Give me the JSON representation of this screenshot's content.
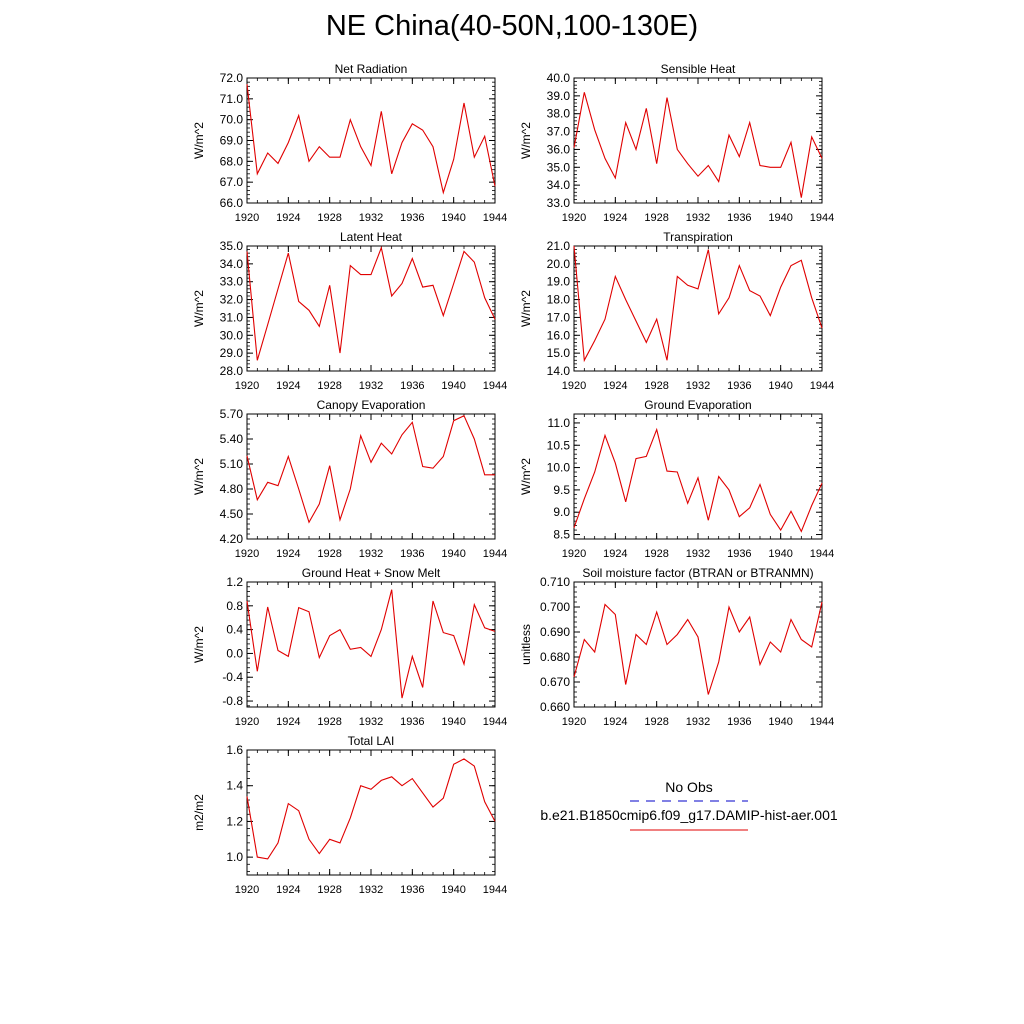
{
  "title": "NE China(40-50N,100-130E)",
  "colors": {
    "model": "#e00000",
    "obs": "#0000c8",
    "axis": "#000000"
  },
  "legend": {
    "obs_label": "No Obs",
    "model_label": "b.e21.B1850cmip6.f09_g17.DAMIP-hist-aer.001"
  },
  "chart_data": [
    {
      "type": "line",
      "title": "Net Radiation",
      "ylabel": "W/m^2",
      "xlim": [
        1920,
        1944
      ],
      "ylim": [
        66.0,
        72.0
      ],
      "xticks": [
        1920,
        1924,
        1928,
        1932,
        1936,
        1940,
        1944
      ],
      "xtick_labels": [
        "1920",
        "1924",
        "1928",
        "1932",
        "1936",
        "1940",
        "1944"
      ],
      "yticks": [
        66.0,
        67.0,
        68.0,
        69.0,
        70.0,
        71.0,
        72.0
      ],
      "ytick_labels": [
        "66.0",
        "67.0",
        "68.0",
        "69.0",
        "70.0",
        "71.0",
        "72.0"
      ],
      "series": [
        {
          "x": [
            1920,
            1921,
            1922,
            1923,
            1924,
            1925,
            1926,
            1927,
            1928,
            1929,
            1930,
            1931,
            1932,
            1933,
            1934,
            1935,
            1936,
            1937,
            1938,
            1939,
            1940,
            1941,
            1942,
            1943,
            1944
          ],
          "values": [
            71.7,
            67.4,
            68.4,
            67.9,
            68.9,
            70.2,
            68.0,
            68.7,
            68.2,
            68.2,
            70.0,
            68.7,
            67.8,
            70.4,
            67.4,
            68.9,
            69.8,
            69.5,
            68.7,
            66.5,
            68.1,
            70.8,
            68.2,
            69.2,
            66.8
          ]
        }
      ]
    },
    {
      "type": "line",
      "title": "Sensible Heat",
      "ylabel": "W/m^2",
      "xlim": [
        1920,
        1944
      ],
      "ylim": [
        33.0,
        40.0
      ],
      "xticks": [
        1920,
        1924,
        1928,
        1932,
        1936,
        1940,
        1944
      ],
      "xtick_labels": [
        "1920",
        "1924",
        "1928",
        "1932",
        "1936",
        "1940",
        "1944"
      ],
      "yticks": [
        33.0,
        34.0,
        35.0,
        36.0,
        37.0,
        38.0,
        39.0,
        40.0
      ],
      "ytick_labels": [
        "33.0",
        "34.0",
        "35.0",
        "36.0",
        "37.0",
        "38.0",
        "39.0",
        "40.0"
      ],
      "series": [
        {
          "x": [
            1920,
            1921,
            1922,
            1923,
            1924,
            1925,
            1926,
            1927,
            1928,
            1929,
            1930,
            1931,
            1932,
            1933,
            1934,
            1935,
            1936,
            1937,
            1938,
            1939,
            1940,
            1941,
            1942,
            1943,
            1944
          ],
          "values": [
            36.1,
            39.2,
            37.1,
            35.5,
            34.4,
            37.5,
            36.0,
            38.3,
            35.2,
            38.9,
            36.0,
            35.2,
            34.5,
            35.1,
            34.2,
            36.8,
            35.6,
            37.5,
            35.1,
            35.0,
            35.0,
            36.4,
            33.3,
            36.7,
            35.5
          ]
        }
      ]
    },
    {
      "type": "line",
      "title": "Latent Heat",
      "ylabel": "W/m^2",
      "xlim": [
        1920,
        1944
      ],
      "ylim": [
        28.0,
        35.0
      ],
      "xticks": [
        1920,
        1924,
        1928,
        1932,
        1936,
        1940,
        1944
      ],
      "xtick_labels": [
        "1920",
        "1924",
        "1928",
        "1932",
        "1936",
        "1940",
        "1944"
      ],
      "yticks": [
        28.0,
        29.0,
        30.0,
        31.0,
        32.0,
        33.0,
        34.0,
        35.0
      ],
      "ytick_labels": [
        "28.0",
        "29.0",
        "30.0",
        "31.0",
        "32.0",
        "33.0",
        "34.0",
        "35.0"
      ],
      "series": [
        {
          "x": [
            1920,
            1921,
            1922,
            1923,
            1924,
            1925,
            1926,
            1927,
            1928,
            1929,
            1930,
            1931,
            1932,
            1933,
            1934,
            1935,
            1936,
            1937,
            1938,
            1939,
            1940,
            1941,
            1942,
            1943,
            1944
          ],
          "values": [
            34.7,
            28.6,
            30.6,
            32.6,
            34.6,
            31.9,
            31.4,
            30.5,
            32.8,
            29.0,
            33.9,
            33.4,
            33.4,
            34.9,
            32.2,
            32.9,
            34.3,
            32.7,
            32.8,
            31.1,
            32.9,
            34.7,
            34.1,
            32.1,
            30.9
          ]
        }
      ]
    },
    {
      "type": "line",
      "title": "Transpiration",
      "ylabel": "W/m^2",
      "xlim": [
        1920,
        1944
      ],
      "ylim": [
        14.0,
        21.0
      ],
      "xticks": [
        1920,
        1924,
        1928,
        1932,
        1936,
        1940,
        1944
      ],
      "xtick_labels": [
        "1920",
        "1924",
        "1928",
        "1932",
        "1936",
        "1940",
        "1944"
      ],
      "yticks": [
        14.0,
        15.0,
        16.0,
        17.0,
        18.0,
        19.0,
        20.0,
        21.0
      ],
      "ytick_labels": [
        "14.0",
        "15.0",
        "16.0",
        "17.0",
        "18.0",
        "19.0",
        "20.0",
        "21.0"
      ],
      "series": [
        {
          "x": [
            1920,
            1921,
            1922,
            1923,
            1924,
            1925,
            1926,
            1927,
            1928,
            1929,
            1930,
            1931,
            1932,
            1933,
            1934,
            1935,
            1936,
            1937,
            1938,
            1939,
            1940,
            1941,
            1942,
            1943,
            1944
          ],
          "values": [
            21.0,
            14.6,
            15.7,
            16.9,
            19.3,
            18.0,
            16.8,
            15.6,
            16.9,
            14.6,
            19.3,
            18.8,
            18.6,
            20.8,
            17.2,
            18.1,
            19.9,
            18.5,
            18.2,
            17.1,
            18.7,
            19.9,
            20.2,
            18.1,
            16.4
          ]
        }
      ]
    },
    {
      "type": "line",
      "title": "Canopy Evaporation",
      "ylabel": "W/m^2",
      "xlim": [
        1920,
        1944
      ],
      "ylim": [
        4.2,
        5.7
      ],
      "xticks": [
        1920,
        1924,
        1928,
        1932,
        1936,
        1940,
        1944
      ],
      "xtick_labels": [
        "1920",
        "1924",
        "1928",
        "1932",
        "1936",
        "1940",
        "1944"
      ],
      "yticks": [
        4.2,
        4.5,
        4.8,
        5.1,
        5.4,
        5.7
      ],
      "ytick_labels": [
        "4.20",
        "4.50",
        "4.80",
        "5.10",
        "5.40",
        "5.70"
      ],
      "series": [
        {
          "x": [
            1920,
            1921,
            1922,
            1923,
            1924,
            1925,
            1926,
            1927,
            1928,
            1929,
            1930,
            1931,
            1932,
            1933,
            1934,
            1935,
            1936,
            1937,
            1938,
            1939,
            1940,
            1941,
            1942,
            1943,
            1944
          ],
          "values": [
            5.2,
            4.67,
            4.88,
            4.84,
            5.19,
            4.8,
            4.4,
            4.62,
            5.08,
            4.43,
            4.8,
            5.44,
            5.12,
            5.35,
            5.22,
            5.45,
            5.6,
            5.07,
            5.05,
            5.19,
            5.62,
            5.68,
            5.4,
            4.97,
            4.97
          ]
        }
      ]
    },
    {
      "type": "line",
      "title": "Ground Evaporation",
      "ylabel": "W/m^2",
      "xlim": [
        1920,
        1944
      ],
      "ylim": [
        8.4,
        11.2
      ],
      "xticks": [
        1920,
        1924,
        1928,
        1932,
        1936,
        1940,
        1944
      ],
      "xtick_labels": [
        "1920",
        "1924",
        "1928",
        "1932",
        "1936",
        "1940",
        "1944"
      ],
      "yticks": [
        8.5,
        9.0,
        9.5,
        10.0,
        10.5,
        11.0
      ],
      "ytick_labels": [
        "8.5",
        "9.0",
        "9.5",
        "10.0",
        "10.5",
        "11.0"
      ],
      "series": [
        {
          "x": [
            1920,
            1921,
            1922,
            1923,
            1924,
            1925,
            1926,
            1927,
            1928,
            1929,
            1930,
            1931,
            1932,
            1933,
            1934,
            1935,
            1936,
            1937,
            1938,
            1939,
            1940,
            1941,
            1942,
            1943,
            1944
          ],
          "values": [
            8.65,
            9.3,
            9.9,
            10.72,
            10.1,
            9.23,
            10.2,
            10.25,
            10.85,
            9.92,
            9.9,
            9.2,
            9.77,
            8.82,
            9.8,
            9.5,
            8.9,
            9.1,
            9.62,
            8.95,
            8.6,
            9.02,
            8.57,
            9.15,
            9.65
          ]
        }
      ]
    },
    {
      "type": "line",
      "title": "Ground Heat + Snow Melt",
      "ylabel": "W/m^2",
      "xlim": [
        1920,
        1944
      ],
      "ylim": [
        -0.9,
        1.2
      ],
      "xticks": [
        1920,
        1924,
        1928,
        1932,
        1936,
        1940,
        1944
      ],
      "xtick_labels": [
        "1920",
        "1924",
        "1928",
        "1932",
        "1936",
        "1940",
        "1944"
      ],
      "yticks": [
        -0.8,
        -0.4,
        0.0,
        0.4,
        0.8,
        1.2
      ],
      "ytick_labels": [
        "-0.8",
        "-0.4",
        "0.0",
        "0.4",
        "0.8",
        "1.2"
      ],
      "series": [
        {
          "x": [
            1920,
            1921,
            1922,
            1923,
            1924,
            1925,
            1926,
            1927,
            1928,
            1929,
            1930,
            1931,
            1932,
            1933,
            1934,
            1935,
            1936,
            1937,
            1938,
            1939,
            1940,
            1941,
            1942,
            1943,
            1944
          ],
          "values": [
            0.88,
            -0.3,
            0.78,
            0.05,
            -0.05,
            0.77,
            0.7,
            -0.07,
            0.3,
            0.4,
            0.07,
            0.1,
            -0.05,
            0.4,
            1.07,
            -0.75,
            -0.05,
            -0.57,
            0.88,
            0.35,
            0.3,
            -0.18,
            0.82,
            0.43,
            0.37
          ]
        }
      ]
    },
    {
      "type": "line",
      "title": "Soil moisture factor (BTRAN or BTRANMN)",
      "ylabel": "unitless",
      "xlim": [
        1920,
        1944
      ],
      "ylim": [
        0.66,
        0.71
      ],
      "xticks": [
        1920,
        1924,
        1928,
        1932,
        1936,
        1940,
        1944
      ],
      "xtick_labels": [
        "1920",
        "1924",
        "1928",
        "1932",
        "1936",
        "1940",
        "1944"
      ],
      "yticks": [
        0.66,
        0.67,
        0.68,
        0.69,
        0.7,
        0.71
      ],
      "ytick_labels": [
        "0.660",
        "0.670",
        "0.680",
        "0.690",
        "0.700",
        "0.710"
      ],
      "series": [
        {
          "x": [
            1920,
            1921,
            1922,
            1923,
            1924,
            1925,
            1926,
            1927,
            1928,
            1929,
            1930,
            1931,
            1932,
            1933,
            1934,
            1935,
            1936,
            1937,
            1938,
            1939,
            1940,
            1941,
            1942,
            1943,
            1944
          ],
          "values": [
            0.672,
            0.687,
            0.682,
            0.701,
            0.697,
            0.669,
            0.689,
            0.685,
            0.698,
            0.685,
            0.689,
            0.695,
            0.688,
            0.665,
            0.678,
            0.7,
            0.69,
            0.696,
            0.677,
            0.686,
            0.682,
            0.695,
            0.687,
            0.684,
            0.702
          ]
        }
      ]
    },
    {
      "type": "line",
      "title": "Total LAI",
      "ylabel": "m2/m2",
      "xlim": [
        1920,
        1944
      ],
      "ylim": [
        0.9,
        1.6
      ],
      "xticks": [
        1920,
        1924,
        1928,
        1932,
        1936,
        1940,
        1944
      ],
      "xtick_labels": [
        "1920",
        "1924",
        "1928",
        "1932",
        "1936",
        "1940",
        "1944"
      ],
      "yticks": [
        1.0,
        1.2,
        1.4,
        1.6
      ],
      "ytick_labels": [
        "1.0",
        "1.2",
        "1.4",
        "1.6"
      ],
      "series": [
        {
          "x": [
            1920,
            1921,
            1922,
            1923,
            1924,
            1925,
            1926,
            1927,
            1928,
            1929,
            1930,
            1931,
            1932,
            1933,
            1934,
            1935,
            1936,
            1937,
            1938,
            1939,
            1940,
            1941,
            1942,
            1943,
            1944
          ],
          "values": [
            1.34,
            1.0,
            0.99,
            1.08,
            1.3,
            1.26,
            1.1,
            1.02,
            1.1,
            1.08,
            1.22,
            1.4,
            1.38,
            1.43,
            1.45,
            1.4,
            1.44,
            1.36,
            1.28,
            1.33,
            1.52,
            1.55,
            1.51,
            1.31,
            1.2
          ]
        }
      ]
    }
  ]
}
